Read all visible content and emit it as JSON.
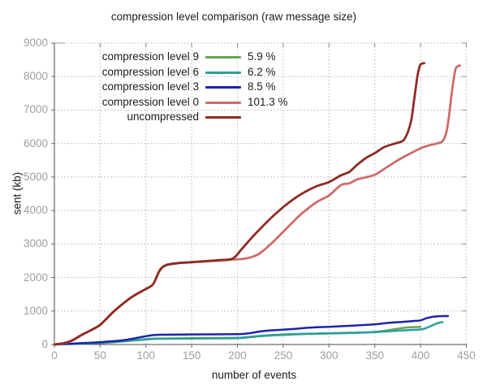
{
  "chart_data": {
    "type": "line",
    "title": "compression level comparison (raw message size)",
    "xlabel": "number of events",
    "ylabel": "sent (kb)",
    "xlim": [
      0,
      450
    ],
    "ylim": [
      0,
      9000
    ],
    "x_ticks": [
      0,
      50,
      100,
      150,
      200,
      250,
      300,
      350,
      400,
      450
    ],
    "y_ticks": [
      0,
      1000,
      2000,
      3000,
      4000,
      5000,
      6000,
      7000,
      8000,
      9000
    ],
    "grid": "dotted",
    "legend_position": "top-left-inside",
    "series": [
      {
        "label": "compression level 9",
        "ratio_label": "5.9 %",
        "color": "#66a353",
        "points": [
          [
            0,
            0
          ],
          [
            25,
            20
          ],
          [
            50,
            42
          ],
          [
            75,
            92
          ],
          [
            100,
            148
          ],
          [
            110,
            168
          ],
          [
            150,
            178
          ],
          [
            200,
            188
          ],
          [
            215,
            222
          ],
          [
            230,
            258
          ],
          [
            260,
            298
          ],
          [
            300,
            328
          ],
          [
            330,
            348
          ],
          [
            350,
            375
          ],
          [
            365,
            430
          ],
          [
            380,
            490
          ],
          [
            390,
            515
          ],
          [
            400,
            527
          ]
        ]
      },
      {
        "label": "compression level 6",
        "ratio_label": "6.2 %",
        "color": "#2b9e9e",
        "points": [
          [
            0,
            0
          ],
          [
            25,
            22
          ],
          [
            50,
            48
          ],
          [
            75,
            98
          ],
          [
            100,
            158
          ],
          [
            110,
            178
          ],
          [
            150,
            188
          ],
          [
            200,
            198
          ],
          [
            215,
            232
          ],
          [
            230,
            268
          ],
          [
            260,
            308
          ],
          [
            300,
            338
          ],
          [
            330,
            355
          ],
          [
            350,
            368
          ],
          [
            365,
            395
          ],
          [
            380,
            420
          ],
          [
            395,
            440
          ],
          [
            402,
            458
          ],
          [
            406,
            490
          ],
          [
            412,
            560
          ],
          [
            417,
            620
          ],
          [
            421,
            655
          ],
          [
            424,
            668
          ]
        ]
      },
      {
        "label": "compression level 3",
        "ratio_label": "8.5 %",
        "color": "#1e23a8",
        "points": [
          [
            0,
            0
          ],
          [
            25,
            35
          ],
          [
            50,
            70
          ],
          [
            75,
            125
          ],
          [
            95,
            220
          ],
          [
            105,
            270
          ],
          [
            115,
            292
          ],
          [
            150,
            300
          ],
          [
            200,
            310
          ],
          [
            212,
            332
          ],
          [
            225,
            390
          ],
          [
            240,
            428
          ],
          [
            260,
            462
          ],
          [
            280,
            505
          ],
          [
            300,
            530
          ],
          [
            320,
            555
          ],
          [
            340,
            585
          ],
          [
            355,
            615
          ],
          [
            366,
            650
          ],
          [
            380,
            675
          ],
          [
            392,
            700
          ],
          [
            400,
            720
          ],
          [
            406,
            780
          ],
          [
            412,
            820
          ],
          [
            418,
            840
          ],
          [
            425,
            848
          ],
          [
            430,
            850
          ]
        ]
      },
      {
        "label": "compression level 0",
        "ratio_label": "101.3 %",
        "color": "#cd6b6b",
        "points": [
          [
            0,
            0
          ],
          [
            10,
            35
          ],
          [
            20,
            125
          ],
          [
            30,
            285
          ],
          [
            40,
            425
          ],
          [
            50,
            585
          ],
          [
            65,
            985
          ],
          [
            80,
            1325
          ],
          [
            90,
            1505
          ],
          [
            100,
            1655
          ],
          [
            108,
            1805
          ],
          [
            115,
            2205
          ],
          [
            122,
            2365
          ],
          [
            135,
            2425
          ],
          [
            150,
            2455
          ],
          [
            165,
            2480
          ],
          [
            180,
            2505
          ],
          [
            195,
            2535
          ],
          [
            207,
            2560
          ],
          [
            216,
            2615
          ],
          [
            225,
            2735
          ],
          [
            238,
            3040
          ],
          [
            253,
            3450
          ],
          [
            269,
            3880
          ],
          [
            286,
            4240
          ],
          [
            300,
            4450
          ],
          [
            313,
            4760
          ],
          [
            322,
            4810
          ],
          [
            331,
            4930
          ],
          [
            340,
            4990
          ],
          [
            351,
            5080
          ],
          [
            363,
            5290
          ],
          [
            377,
            5530
          ],
          [
            390,
            5720
          ],
          [
            401,
            5870
          ],
          [
            410,
            5950
          ],
          [
            419,
            6010
          ],
          [
            424,
            6070
          ],
          [
            428,
            6310
          ],
          [
            431,
            6800
          ],
          [
            434,
            7500
          ],
          [
            437,
            8050
          ],
          [
            439,
            8270
          ],
          [
            443,
            8330
          ]
        ]
      },
      {
        "label": "uncompressed",
        "ratio_label": "",
        "color": "#8e2b24",
        "points": [
          [
            0,
            0
          ],
          [
            10,
            40
          ],
          [
            20,
            130
          ],
          [
            30,
            290
          ],
          [
            40,
            430
          ],
          [
            50,
            590
          ],
          [
            65,
            990
          ],
          [
            80,
            1330
          ],
          [
            90,
            1510
          ],
          [
            100,
            1660
          ],
          [
            108,
            1810
          ],
          [
            115,
            2210
          ],
          [
            122,
            2370
          ],
          [
            135,
            2430
          ],
          [
            150,
            2460
          ],
          [
            165,
            2490
          ],
          [
            180,
            2520
          ],
          [
            195,
            2570
          ],
          [
            205,
            2860
          ],
          [
            215,
            3170
          ],
          [
            225,
            3460
          ],
          [
            238,
            3810
          ],
          [
            253,
            4170
          ],
          [
            269,
            4480
          ],
          [
            286,
            4720
          ],
          [
            300,
            4850
          ],
          [
            313,
            5050
          ],
          [
            322,
            5150
          ],
          [
            331,
            5370
          ],
          [
            340,
            5560
          ],
          [
            351,
            5730
          ],
          [
            360,
            5890
          ],
          [
            372,
            6000
          ],
          [
            381,
            6090
          ],
          [
            386,
            6330
          ],
          [
            390,
            6710
          ],
          [
            393,
            7300
          ],
          [
            396,
            7900
          ],
          [
            398,
            8200
          ],
          [
            400,
            8360
          ],
          [
            404,
            8400
          ]
        ]
      }
    ]
  }
}
